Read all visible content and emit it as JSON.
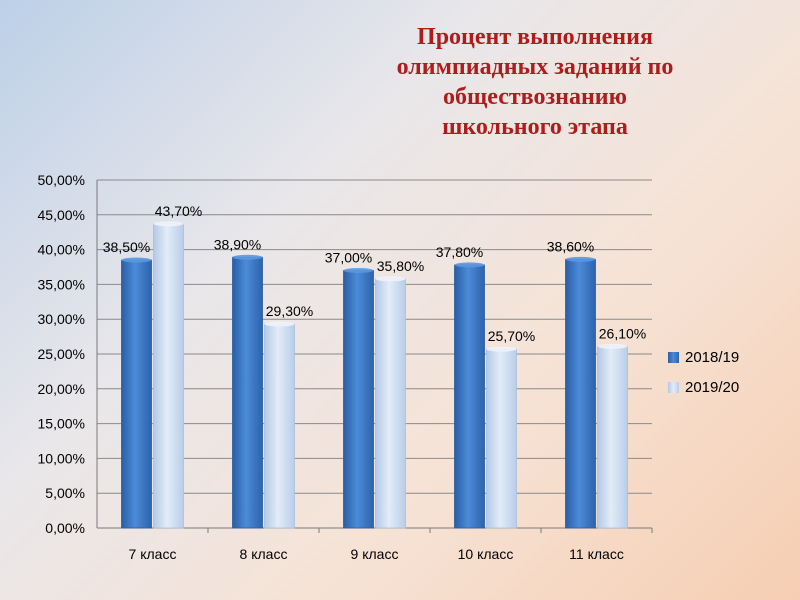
{
  "title_lines": [
    "Процент выполнения",
    "олимпиадных заданий по",
    "обществознанию",
    "школьного этапа"
  ],
  "colors": {
    "series1": "#3a78c8",
    "series2": "#c9dbf1",
    "title": "#b01c1c"
  },
  "chart_data": {
    "type": "bar",
    "title": "Процент выполнения олимпиадных заданий по обществознанию школьного этапа",
    "categories": [
      "7 класс",
      "8 класс",
      "9 класс",
      "10 класс",
      "11 класс"
    ],
    "series": [
      {
        "name": "2018/19",
        "values": [
          38.5,
          38.9,
          37.0,
          37.8,
          38.6
        ],
        "labels": [
          "38,50%",
          "38,90%",
          "37,00%",
          "37,80%",
          "38,60%"
        ]
      },
      {
        "name": "2019/20",
        "values": [
          43.7,
          29.3,
          35.8,
          25.7,
          26.1
        ],
        "labels": [
          "43,70%",
          "29,30%",
          "35,80%",
          "25,70%",
          "26,10%"
        ]
      }
    ],
    "ylim": [
      0,
      50
    ],
    "yticks": [
      "0,00%",
      "5,00%",
      "10,00%",
      "15,00%",
      "20,00%",
      "25,00%",
      "30,00%",
      "35,00%",
      "40,00%",
      "45,00%",
      "50,00%"
    ],
    "xlabel": "",
    "ylabel": "",
    "grid": true,
    "legend_position": "right"
  }
}
